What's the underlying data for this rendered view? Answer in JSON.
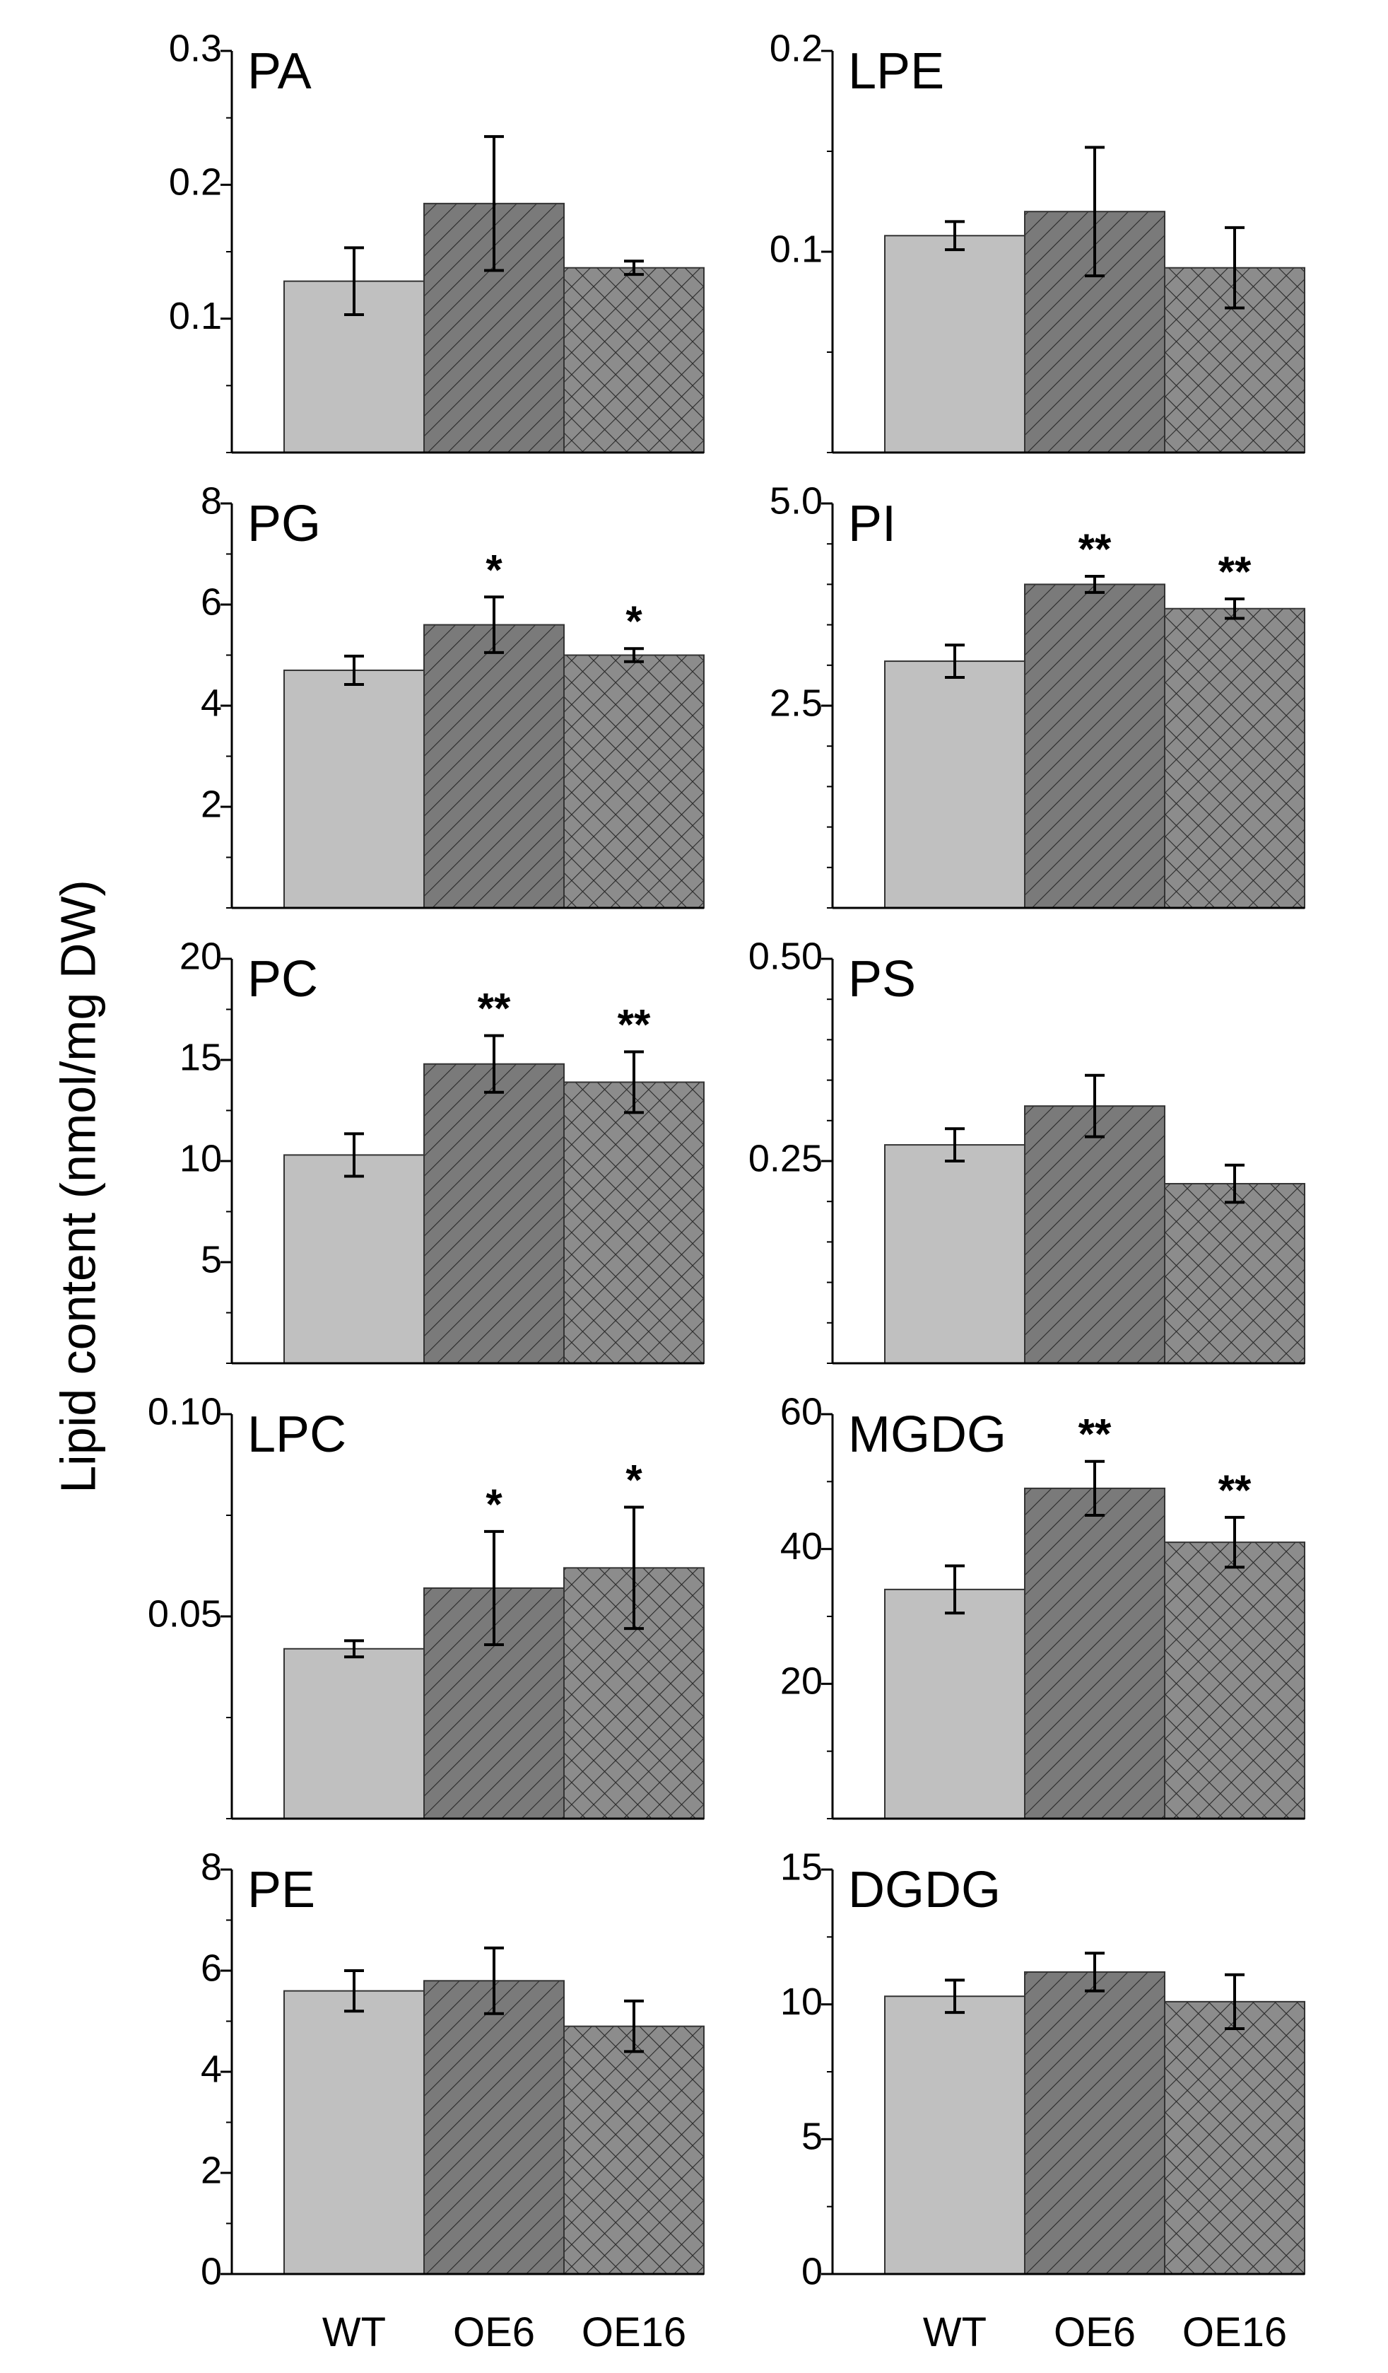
{
  "chart_data": {
    "type": "bar",
    "y_axis_title": "Lipid content (nmol/mg DW)",
    "categories": [
      "WT",
      "OE6",
      "OE16"
    ],
    "series_styles": [
      {
        "name": "WT",
        "fill": "#c0c0c0",
        "pattern": "solid"
      },
      {
        "name": "OE6",
        "fill": "#7a7a7a",
        "pattern": "diagonal"
      },
      {
        "name": "OE16",
        "fill": "#8c8c8c",
        "pattern": "crosshatch"
      }
    ],
    "panels": [
      {
        "title": "PA",
        "ylim": [
          0,
          0.3
        ],
        "ticks": [
          {
            "v": 0.1,
            "label": "0.1"
          },
          {
            "v": 0.2,
            "label": "0.2"
          },
          {
            "v": 0.3,
            "label": "0.3"
          }
        ],
        "minor_step": 0.05,
        "values": [
          0.128,
          0.186,
          0.138
        ],
        "errors": [
          0.025,
          0.05,
          0.005
        ],
        "signif": [
          "",
          "",
          ""
        ]
      },
      {
        "title": "LPE",
        "ylim": [
          0,
          0.2
        ],
        "ticks": [
          {
            "v": 0.1,
            "label": "0.1"
          },
          {
            "v": 0.2,
            "label": "0.2"
          }
        ],
        "minor_step": 0.05,
        "values": [
          0.108,
          0.12,
          0.092
        ],
        "errors": [
          0.007,
          0.032,
          0.02
        ],
        "signif": [
          "",
          "",
          ""
        ]
      },
      {
        "title": "PG",
        "ylim": [
          0,
          8
        ],
        "ticks": [
          {
            "v": 2,
            "label": "2"
          },
          {
            "v": 4,
            "label": "4"
          },
          {
            "v": 6,
            "label": "6"
          },
          {
            "v": 8,
            "label": "8"
          }
        ],
        "minor_step": 1,
        "values": [
          4.7,
          5.6,
          5.0
        ],
        "errors": [
          0.28,
          0.55,
          0.13
        ],
        "signif": [
          "",
          "*",
          "*"
        ]
      },
      {
        "title": "PI",
        "ylim": [
          0,
          5.0
        ],
        "ticks": [
          {
            "v": 2.5,
            "label": "2.5"
          },
          {
            "v": 5.0,
            "label": "5.0"
          }
        ],
        "minor_step": 0.5,
        "values": [
          3.05,
          4.0,
          3.7
        ],
        "errors": [
          0.2,
          0.1,
          0.12
        ],
        "signif": [
          "",
          "**",
          "**"
        ]
      },
      {
        "title": "PC",
        "ylim": [
          0,
          20
        ],
        "ticks": [
          {
            "v": 5,
            "label": "5"
          },
          {
            "v": 10,
            "label": "10"
          },
          {
            "v": 15,
            "label": "15"
          },
          {
            "v": 20,
            "label": "20"
          }
        ],
        "minor_step": 2.5,
        "values": [
          10.3,
          14.8,
          13.9
        ],
        "errors": [
          1.05,
          1.4,
          1.5
        ],
        "signif": [
          "",
          "**",
          "**"
        ]
      },
      {
        "title": "PS",
        "ylim": [
          0,
          0.5
        ],
        "ticks": [
          {
            "v": 0.25,
            "label": "0.25"
          },
          {
            "v": 0.5,
            "label": "0.50"
          }
        ],
        "minor_step": 0.05,
        "values": [
          0.27,
          0.318,
          0.222
        ],
        "errors": [
          0.02,
          0.038,
          0.023
        ],
        "signif": [
          "",
          "",
          ""
        ]
      },
      {
        "title": "LPC",
        "ylim": [
          0,
          0.1
        ],
        "ticks": [
          {
            "v": 0.05,
            "label": "0.05"
          },
          {
            "v": 0.1,
            "label": "0.10"
          }
        ],
        "minor_step": 0.025,
        "values": [
          0.042,
          0.057,
          0.062
        ],
        "errors": [
          0.002,
          0.014,
          0.015
        ],
        "signif": [
          "",
          "*",
          "*"
        ]
      },
      {
        "title": "MGDG",
        "ylim": [
          0,
          60
        ],
        "ticks": [
          {
            "v": 20,
            "label": "20"
          },
          {
            "v": 40,
            "label": "40"
          },
          {
            "v": 60,
            "label": "60"
          }
        ],
        "minor_step": 10,
        "values": [
          34,
          49,
          41
        ],
        "errors": [
          3.5,
          4,
          3.7
        ],
        "signif": [
          "",
          "**",
          "**"
        ]
      },
      {
        "title": "PE",
        "ylim": [
          0,
          8
        ],
        "ticks": [
          {
            "v": 0,
            "label": "0"
          },
          {
            "v": 2,
            "label": "2"
          },
          {
            "v": 4,
            "label": "4"
          },
          {
            "v": 6,
            "label": "6"
          },
          {
            "v": 8,
            "label": "8"
          }
        ],
        "minor_step": 1,
        "values": [
          5.6,
          5.8,
          4.9
        ],
        "errors": [
          0.4,
          0.65,
          0.5
        ],
        "signif": [
          "",
          "",
          ""
        ]
      },
      {
        "title": "DGDG",
        "ylim": [
          0,
          15
        ],
        "ticks": [
          {
            "v": 0,
            "label": "0"
          },
          {
            "v": 5,
            "label": "5"
          },
          {
            "v": 10,
            "label": "10"
          },
          {
            "v": 15,
            "label": "15"
          }
        ],
        "minor_step": 2.5,
        "values": [
          10.3,
          11.2,
          10.1
        ],
        "errors": [
          0.6,
          0.7,
          1.0
        ],
        "signif": [
          "",
          "",
          ""
        ]
      }
    ]
  }
}
